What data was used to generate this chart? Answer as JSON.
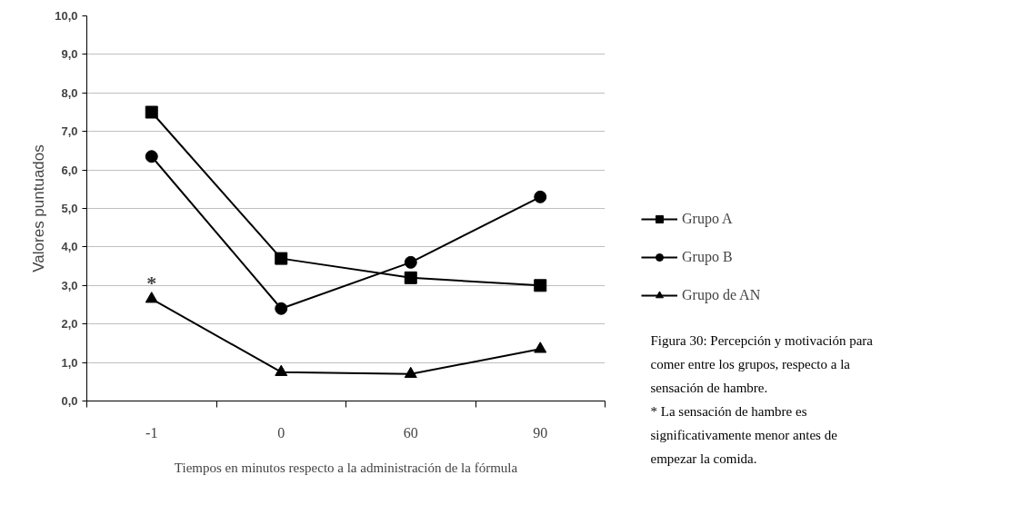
{
  "chart_data": {
    "type": "line",
    "xlabel": "Tiempos en minutos respecto a la administración de la fórmula",
    "ylabel": "Valores puntuados",
    "categories": [
      "-1",
      "0",
      "60",
      "90"
    ],
    "series": [
      {
        "name": "Grupo A",
        "color": "#000000",
        "marker": "square",
        "values": [
          7.5,
          3.7,
          3.2,
          3.0
        ]
      },
      {
        "name": "Grupo B",
        "color": "#000000",
        "marker": "circle",
        "values": [
          6.35,
          2.4,
          3.6,
          5.3
        ]
      },
      {
        "name": "Grupo de AN",
        "color": "#000000",
        "marker": "triangle",
        "values": [
          2.65,
          0.75,
          0.7,
          1.35
        ]
      }
    ],
    "ylim": [
      0,
      10
    ],
    "yticks": [
      {
        "value": 0,
        "label": "0,0"
      },
      {
        "value": 1,
        "label": "1,0"
      },
      {
        "value": 2,
        "label": "2,0"
      },
      {
        "value": 3,
        "label": "3,0"
      },
      {
        "value": 4,
        "label": "4,0"
      },
      {
        "value": 5,
        "label": "5,0"
      },
      {
        "value": 6,
        "label": "6,0"
      },
      {
        "value": 7,
        "label": "7,0"
      },
      {
        "value": 8,
        "label": "8,0"
      },
      {
        "value": 9,
        "label": "9,0"
      },
      {
        "value": 10,
        "label": "10,0"
      }
    ],
    "grid": "y",
    "legend": "right",
    "line_style": "solid",
    "annotations": [
      {
        "text": "*",
        "x": "-1",
        "y": 2.65
      },
      "Figura 30: Percepción y motivación para comer entre los grupos, respecto a la sensación de hambre.",
      "* La sensación de hambre es significativamente menor antes de empezar la comida."
    ]
  }
}
